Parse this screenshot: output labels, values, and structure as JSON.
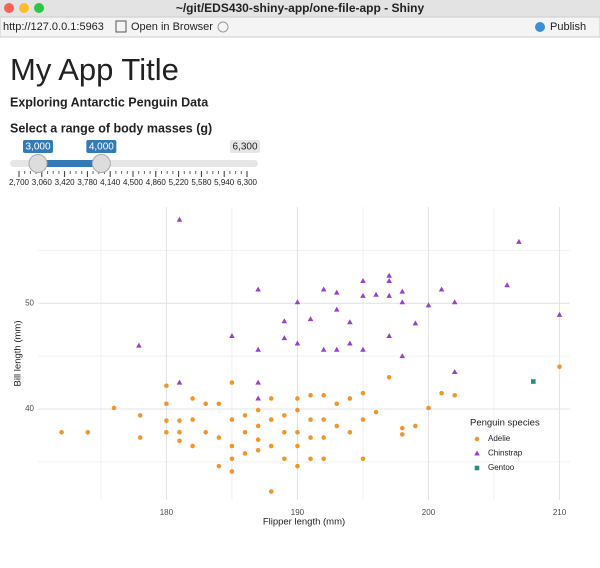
{
  "window": {
    "title": "~/git/EDS430-shiny-app/one-file-app - Shiny",
    "url": "http://127.0.0.1:5963",
    "open_button": "Open in Browser",
    "publish": "Publish"
  },
  "app": {
    "title": "My App Title",
    "subtitle": "Exploring Antarctic Penguin Data",
    "slider": {
      "label": "Select a range of body masses (g)",
      "min": 2700,
      "max": 6300,
      "values": [
        {
          "value": 3000,
          "label": "3,000"
        },
        {
          "value": 4000,
          "label": "4,000"
        }
      ],
      "max_label": {
        "value": 6300,
        "label": "6,300"
      },
      "ticks": [
        {
          "value": 2700,
          "label": "2,700"
        },
        {
          "value": 3060,
          "label": "3,060"
        },
        {
          "value": 3420,
          "label": "3,420"
        },
        {
          "value": 3780,
          "label": "3,780"
        },
        {
          "value": 4140,
          "label": "4,140"
        },
        {
          "value": 4500,
          "label": "4,500"
        },
        {
          "value": 4860,
          "label": "4,860"
        },
        {
          "value": 5220,
          "label": "5,220"
        },
        {
          "value": 5580,
          "label": "5,580"
        },
        {
          "value": 5940,
          "label": "5,940"
        },
        {
          "value": 6300,
          "label": "6,300"
        }
      ]
    }
  },
  "chart_data": {
    "type": "scatter",
    "x_label": "Flipper length (mm)",
    "y_label": "Bill length (mm)",
    "legend_title": "Penguin species",
    "xlim": [
      170.2,
      210.8
    ],
    "ylim": [
      31.4,
      59.1
    ],
    "xticks": [
      180,
      190,
      200,
      210
    ],
    "yticks": [
      40,
      50
    ],
    "grid": true,
    "legend_position": "right",
    "series": [
      {
        "name": "Adelie",
        "color": "#f2962b",
        "marker": "circle",
        "x": [
          172,
          174,
          176,
          178,
          178,
          180,
          180,
          180,
          180,
          181,
          181,
          181,
          182,
          182,
          182,
          183,
          183,
          184,
          184,
          184,
          185,
          185,
          185,
          185,
          185,
          186,
          186,
          186,
          187,
          187,
          187,
          187,
          188,
          188,
          188,
          188,
          189,
          189,
          189,
          190,
          190,
          190,
          190,
          190,
          191,
          191,
          191,
          191,
          192,
          192,
          192,
          192,
          193,
          193,
          194,
          194,
          195,
          195,
          195,
          196,
          197,
          198,
          198,
          199,
          200,
          201,
          202,
          210
        ],
        "values": [
          37.8,
          37.8,
          40.1,
          39.4,
          37.3,
          42.2,
          40.5,
          38.9,
          37.8,
          38.9,
          37.8,
          37.0,
          41.0,
          39.0,
          36.5,
          40.5,
          37.8,
          40.5,
          37.3,
          34.6,
          42.5,
          39.0,
          36.5,
          35.3,
          34.1,
          39.4,
          37.8,
          35.8,
          39.9,
          38.4,
          37.1,
          36.1,
          41.0,
          39.0,
          36.5,
          32.2,
          39.4,
          37.8,
          35.3,
          41.0,
          39.9,
          37.8,
          36.5,
          34.6,
          41.3,
          39.0,
          37.3,
          35.3,
          41.3,
          39.0,
          37.3,
          35.3,
          40.5,
          38.4,
          41.0,
          37.8,
          41.5,
          39.0,
          35.3,
          39.7,
          43.0,
          38.2,
          37.6,
          38.4,
          40.1,
          41.5,
          41.3,
          44.0
        ]
      },
      {
        "name": "Chinstrap",
        "color": "#9b3fcf",
        "marker": "triangle",
        "x": [
          181,
          206.9,
          177.9,
          181,
          187,
          185,
          187,
          187,
          187,
          190,
          190,
          189,
          191,
          192,
          192,
          193,
          193,
          193,
          194,
          194,
          195,
          195,
          195,
          196,
          197,
          197,
          197,
          197,
          198,
          198,
          198,
          199,
          200,
          201,
          202,
          202,
          206,
          210,
          189
        ],
        "values": [
          57.9,
          55.8,
          46.0,
          42.5,
          51.3,
          46.9,
          45.6,
          42.5,
          41.0,
          50.1,
          46.2,
          46.7,
          48.5,
          51.3,
          45.6,
          51.0,
          49.4,
          45.6,
          48.2,
          46.2,
          52.1,
          50.7,
          45.6,
          50.8,
          52.6,
          52.1,
          50.7,
          46.9,
          51.1,
          50.1,
          45.0,
          48.1,
          49.8,
          51.3,
          50.1,
          43.5,
          51.7,
          48.9,
          48.3
        ]
      },
      {
        "name": "Gentoo",
        "color": "#2a8b8b",
        "marker": "square",
        "x": [
          208
        ],
        "values": [
          42.6
        ]
      }
    ]
  }
}
